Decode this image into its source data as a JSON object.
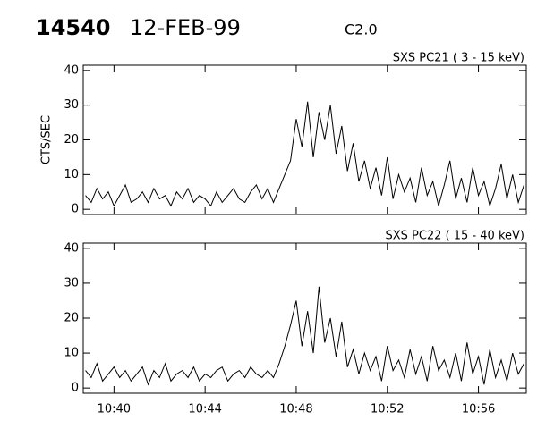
{
  "header": {
    "event": "14540",
    "date": "12-FEB-99",
    "class": "C2.0"
  },
  "chart_data": [
    {
      "type": "line",
      "subtitle": "SXS PC21  (  3 - 15 keV)",
      "y_label": "CTS/SEC",
      "color": "#000000",
      "x": [
        38.75,
        39,
        39.25,
        39.5,
        39.75,
        40,
        40.25,
        40.5,
        40.75,
        41,
        41.25,
        41.5,
        41.75,
        42,
        42.25,
        42.5,
        42.75,
        43,
        43.25,
        43.5,
        43.75,
        44,
        44.25,
        44.5,
        44.75,
        45,
        45.25,
        45.5,
        45.75,
        46,
        46.25,
        46.5,
        46.75,
        47,
        47.25,
        47.5,
        47.75,
        48,
        48.25,
        48.5,
        48.75,
        49,
        49.25,
        49.5,
        49.75,
        50,
        50.25,
        50.5,
        50.75,
        51,
        51.25,
        51.5,
        51.75,
        52,
        52.25,
        52.5,
        52.75,
        53,
        53.25,
        53.5,
        53.75,
        54,
        54.25,
        54.5,
        54.75,
        55,
        55.25,
        55.5,
        55.75,
        56,
        56.25,
        56.5,
        56.75,
        57,
        57.25,
        57.5,
        57.75,
        58
      ],
      "values": [
        4,
        2,
        6,
        3,
        5,
        1,
        4,
        7,
        2,
        3,
        5,
        2,
        6,
        3,
        4,
        1,
        5,
        3,
        6,
        2,
        4,
        3,
        1,
        5,
        2,
        4,
        6,
        3,
        2,
        5,
        7,
        3,
        6,
        2,
        6,
        10,
        14,
        26,
        18,
        31,
        15,
        28,
        20,
        30,
        16,
        24,
        11,
        19,
        8,
        14,
        6,
        12,
        4,
        15,
        3,
        10,
        5,
        9,
        2,
        12,
        4,
        8,
        1,
        7,
        14,
        3,
        9,
        2,
        12,
        4,
        8,
        1,
        6,
        13,
        3,
        10,
        2,
        7
      ],
      "xlim": [
        38.65,
        58.1
      ],
      "xticks": [
        40,
        44,
        48,
        52,
        56
      ],
      "ylim": [
        -1.5,
        41.5
      ],
      "yticks": [
        0,
        10,
        20,
        30,
        40
      ]
    },
    {
      "type": "line",
      "subtitle": "SXS PC22  ( 15 - 40 keV)",
      "color": "#000000",
      "x": [
        38.75,
        39,
        39.25,
        39.5,
        39.75,
        40,
        40.25,
        40.5,
        40.75,
        41,
        41.25,
        41.5,
        41.75,
        42,
        42.25,
        42.5,
        42.75,
        43,
        43.25,
        43.5,
        43.75,
        44,
        44.25,
        44.5,
        44.75,
        45,
        45.25,
        45.5,
        45.75,
        46,
        46.25,
        46.5,
        46.75,
        47,
        47.25,
        47.5,
        47.75,
        48,
        48.25,
        48.5,
        48.75,
        49,
        49.25,
        49.5,
        49.75,
        50,
        50.25,
        50.5,
        50.75,
        51,
        51.25,
        51.5,
        51.75,
        52,
        52.25,
        52.5,
        52.75,
        53,
        53.25,
        53.5,
        53.75,
        54,
        54.25,
        54.5,
        54.75,
        55,
        55.25,
        55.5,
        55.75,
        56,
        56.25,
        56.5,
        56.75,
        57,
        57.25,
        57.5,
        57.75,
        58
      ],
      "values": [
        5,
        3,
        7,
        2,
        4,
        6,
        3,
        5,
        2,
        4,
        6,
        1,
        5,
        3,
        7,
        2,
        4,
        5,
        3,
        6,
        2,
        4,
        3,
        5,
        6,
        2,
        4,
        5,
        3,
        6,
        4,
        3,
        5,
        3,
        7,
        12,
        18,
        25,
        12,
        22,
        10,
        29,
        13,
        20,
        9,
        19,
        6,
        11,
        4,
        10,
        5,
        9,
        2,
        12,
        5,
        8,
        3,
        11,
        4,
        9,
        2,
        12,
        5,
        8,
        3,
        10,
        2,
        13,
        4,
        9,
        1,
        11,
        3,
        8,
        2,
        10,
        4,
        7
      ],
      "xlim": [
        38.65,
        58.1
      ],
      "xticks": [
        {
          "value": 40,
          "label": "10:40"
        },
        {
          "value": 44,
          "label": "10:44"
        },
        {
          "value": 48,
          "label": "10:48"
        },
        {
          "value": 52,
          "label": "10:52"
        },
        {
          "value": 56,
          "label": "10:56"
        }
      ],
      "ylim": [
        -1.5,
        41.5
      ],
      "yticks": [
        0,
        10,
        20,
        30,
        40
      ]
    }
  ]
}
